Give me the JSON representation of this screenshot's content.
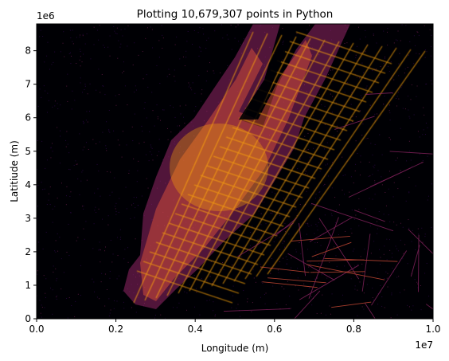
{
  "chart_data": {
    "type": "heatmap",
    "title": "Plotting 10,679,307 points in Python",
    "xlabel": "Longitude (m)",
    "ylabel": "Latitiude (m)",
    "xlim": [
      0,
      1.0
    ],
    "ylim": [
      0,
      8.8
    ],
    "x_offset_label": "1e7",
    "y_offset_label": "1e6",
    "x_ticks": [
      0.0,
      0.2,
      0.4,
      0.6,
      0.8,
      1.0
    ],
    "x_tick_labels": [
      "0.0",
      "0.2",
      "0.4",
      "0.6",
      "0.8",
      "1.0"
    ],
    "y_ticks": [
      0,
      1,
      2,
      3,
      4,
      5,
      6,
      7,
      8
    ],
    "y_tick_labels": [
      "0",
      "1",
      "2",
      "3",
      "4",
      "5",
      "6",
      "7",
      "8"
    ],
    "grid": false,
    "colormap": "inferno",
    "background_color": "#000004",
    "colors": [
      "#000004",
      "#420a68",
      "#932667",
      "#dd513a",
      "#fca50a",
      "#fcffa4"
    ]
  }
}
